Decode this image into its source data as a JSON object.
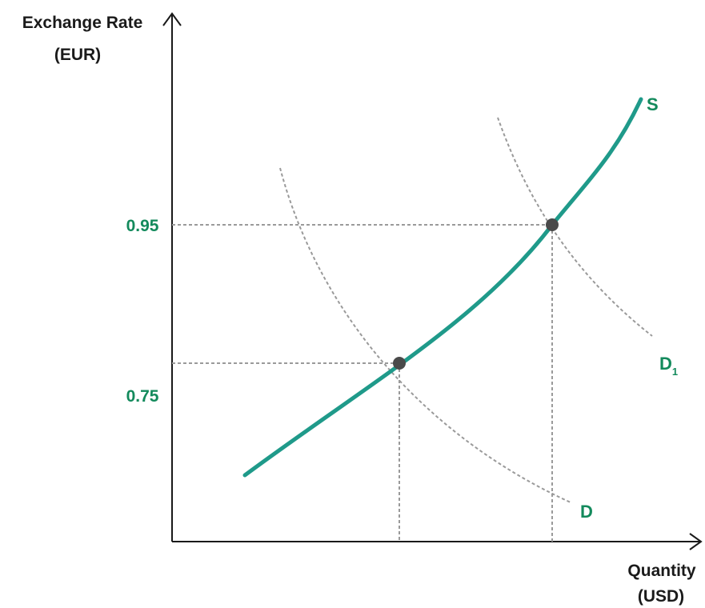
{
  "colors": {
    "axis": "#1a1a1a",
    "supply": "#1f9a8a",
    "demand_dashed": "#9a9a9a",
    "guide": "#9a9a9a",
    "label_green": "#138a5c",
    "point": "#4a4a4a"
  },
  "axes": {
    "y_title_line1": "Exchange Rate",
    "y_title_line2": "(EUR)",
    "x_title_line1": "Quantity",
    "x_title_line2": "(USD)"
  },
  "ticks": {
    "y_high": "0.95",
    "y_low": "0.75"
  },
  "curves": {
    "supply": "S",
    "demand": "D",
    "demand_shift_main": "D",
    "demand_shift_sub": "1"
  },
  "points": [
    {
      "name": "original-equilibrium"
    },
    {
      "name": "new-equilibrium"
    }
  ]
}
